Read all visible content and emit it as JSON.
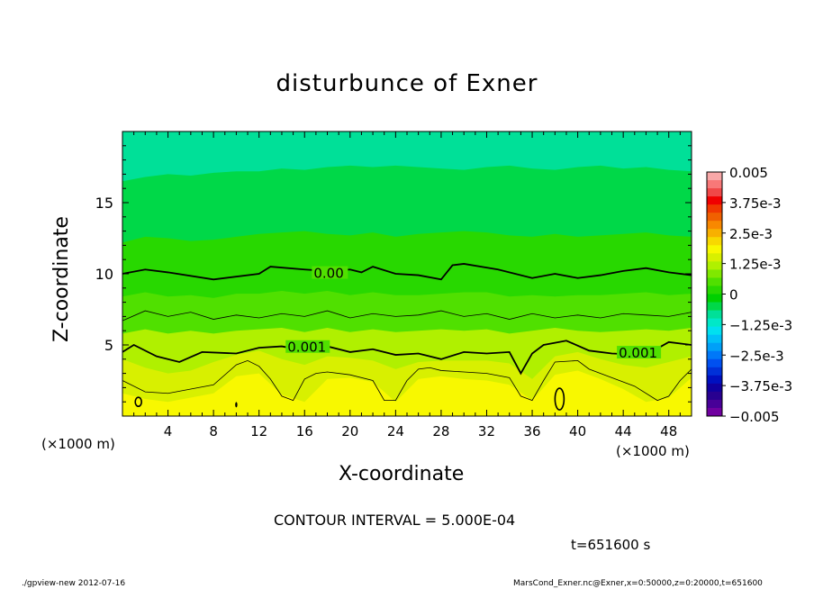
{
  "chart_data": {
    "type": "heatmap",
    "title": "disturbunce of Exner",
    "xlabel": "X-coordinate",
    "ylabel": "Z-coordinate",
    "x_unit_label": "(×1000 m)",
    "xlim": [
      0,
      50
    ],
    "ylim": [
      0,
      20
    ],
    "x_ticks": [
      4,
      8,
      12,
      16,
      20,
      24,
      28,
      32,
      36,
      40,
      44,
      48
    ],
    "y_ticks": [
      5,
      10,
      15
    ],
    "contour_interval": "CONTOUR INTERVAL = 5.000E-04",
    "contour_labels": [
      {
        "text": "0.00",
        "x": 16.8,
        "z": 9.9
      },
      {
        "text": "0.001",
        "x": 14.5,
        "z": 4.7
      },
      {
        "text": "0.001",
        "x": 43.6,
        "z": 4.3
      }
    ],
    "contours": [
      {
        "level": 0.0,
        "bold": true,
        "x": [
          0,
          2,
          4,
          8,
          12,
          13,
          16,
          18,
          20,
          21,
          22,
          24,
          26,
          28,
          29,
          30,
          33,
          36,
          38,
          40,
          42,
          44,
          46,
          48,
          50
        ],
        "z": [
          10,
          10.3,
          10.1,
          9.6,
          10,
          10.5,
          10.3,
          10.2,
          10.3,
          10.1,
          10.5,
          10,
          9.9,
          9.6,
          10.6,
          10.7,
          10.3,
          9.7,
          10,
          9.7,
          9.9,
          10.2,
          10.4,
          10.1,
          9.9
        ]
      },
      {
        "level": 0.0005,
        "bold": false,
        "x": [
          0,
          2,
          4,
          6,
          8,
          10,
          12,
          14,
          16,
          18,
          20,
          22,
          24,
          26,
          28,
          30,
          32,
          34,
          36,
          38,
          40,
          42,
          44,
          46,
          48,
          50
        ],
        "z": [
          6.7,
          7.4,
          7.0,
          7.3,
          6.8,
          7.1,
          6.9,
          7.2,
          7.0,
          7.4,
          6.9,
          7.2,
          7.0,
          7.1,
          7.4,
          7.0,
          7.2,
          6.8,
          7.2,
          6.9,
          7.1,
          6.9,
          7.2,
          7.1,
          7.0,
          7.3
        ]
      },
      {
        "level": 0.001,
        "bold": true,
        "x": [
          0,
          1,
          3,
          5,
          7,
          10,
          12,
          14,
          16,
          18,
          20,
          22,
          24,
          26,
          28,
          30,
          32,
          34,
          35,
          36,
          37,
          39,
          41,
          43,
          46,
          48,
          50
        ],
        "z": [
          4.5,
          5,
          4.2,
          3.8,
          4.5,
          4.4,
          4.8,
          4.9,
          4.6,
          4.9,
          4.5,
          4.7,
          4.3,
          4.4,
          4,
          4.5,
          4.4,
          4.5,
          3,
          4.4,
          5,
          5.3,
          4.6,
          4.4,
          4.3,
          5.2,
          5
        ]
      },
      {
        "level": 0.0015,
        "bold": false,
        "x": [
          0,
          2,
          4,
          6,
          8,
          10,
          11,
          12,
          13,
          14,
          15,
          16,
          17,
          18,
          20,
          22,
          23,
          24,
          25,
          26,
          27,
          28,
          30,
          32,
          34,
          35,
          36,
          37,
          38,
          40,
          41,
          43,
          45,
          47,
          48,
          49,
          50
        ],
        "z": [
          2.5,
          1.7,
          1.6,
          1.9,
          2.2,
          3.6,
          3.9,
          3.5,
          2.6,
          1.4,
          1.1,
          2.6,
          3,
          3.1,
          2.9,
          2.5,
          1.1,
          1.1,
          2.5,
          3.3,
          3.4,
          3.2,
          3.1,
          3,
          2.7,
          1.4,
          1.1,
          2.5,
          3.8,
          3.9,
          3.3,
          2.7,
          2.1,
          1.1,
          1.4,
          2.5,
          3.3
        ]
      }
    ],
    "field_bands_x": [
      0,
      2,
      4,
      6,
      8,
      10,
      12,
      14,
      16,
      18,
      20,
      22,
      24,
      26,
      28,
      30,
      32,
      34,
      36,
      38,
      40,
      42,
      44,
      46,
      48,
      50
    ],
    "field_bands": [
      {
        "level": 0.00175,
        "z": [
          1.6,
          1.2,
          1.0,
          1.3,
          1.6,
          2.8,
          3.0,
          1.5,
          1.0,
          2.6,
          2.7,
          2.4,
          1.0,
          2.6,
          2.8,
          2.6,
          2.5,
          2.2,
          1.1,
          2.9,
          3.2,
          2.6,
          1.9,
          1.0,
          1.3,
          2.7
        ]
      },
      {
        "level": 0.00125,
        "z": [
          4.0,
          3.4,
          3.0,
          3.2,
          3.8,
          4.3,
          4.6,
          4.0,
          3.6,
          4.2,
          4.1,
          3.9,
          3.3,
          3.8,
          3.9,
          3.9,
          3.9,
          3.7,
          2.6,
          4.2,
          4.5,
          4.0,
          3.6,
          3.4,
          3.8,
          4.2
        ]
      },
      {
        "level": 0.00075,
        "z": [
          5.8,
          6.1,
          5.8,
          6.0,
          5.8,
          6.0,
          6.1,
          6.2,
          5.9,
          6.2,
          5.9,
          6.1,
          5.9,
          6.0,
          6.1,
          6.0,
          6.1,
          5.8,
          6.0,
          6.2,
          6.0,
          5.9,
          6.0,
          6.1,
          6.0,
          6.2
        ]
      },
      {
        "level": 0.00025,
        "z": [
          8.4,
          8.7,
          8.4,
          8.5,
          8.3,
          8.6,
          8.6,
          8.8,
          8.6,
          8.8,
          8.5,
          8.7,
          8.5,
          8.5,
          8.6,
          8.7,
          8.7,
          8.4,
          8.5,
          8.4,
          8.5,
          8.5,
          8.6,
          8.7,
          8.5,
          8.6
        ]
      },
      {
        "level": -0.00025,
        "z": [
          12.2,
          12.6,
          12.5,
          12.3,
          12.4,
          12.6,
          12.8,
          12.9,
          13.0,
          12.8,
          12.7,
          12.9,
          12.6,
          12.8,
          12.9,
          13.0,
          12.9,
          12.7,
          12.6,
          12.8,
          12.6,
          12.7,
          12.8,
          12.9,
          12.7,
          12.6
        ]
      },
      {
        "level": -0.00075,
        "z": [
          16.5,
          16.8,
          17.0,
          16.9,
          17.1,
          17.2,
          17.2,
          17.4,
          17.3,
          17.5,
          17.6,
          17.5,
          17.6,
          17.5,
          17.4,
          17.3,
          17.5,
          17.6,
          17.4,
          17.3,
          17.5,
          17.6,
          17.4,
          17.5,
          17.3,
          17.2
        ]
      }
    ],
    "colorbar": {
      "range": [
        -0.005,
        0.005
      ],
      "labels": [
        "0.005",
        "3.75e-3",
        "2.5e-3",
        "1.25e-3",
        "0",
        "−1.25e-3",
        "−2.5e-3",
        "−3.75e-3",
        "−0.005"
      ],
      "label_values": [
        0.005,
        0.00375,
        0.0025,
        0.00125,
        0,
        -0.00125,
        -0.0025,
        -0.00375,
        -0.005
      ],
      "colors": [
        "#f8a8a8",
        "#f87878",
        "#f04848",
        "#f00000",
        "#f03800",
        "#f06000",
        "#f88800",
        "#f8b000",
        "#f8d800",
        "#f8f800",
        "#d8f000",
        "#b0f000",
        "#80e800",
        "#50e000",
        "#28d800",
        "#00d000",
        "#00d848",
        "#00e098",
        "#00e8c8",
        "#00e0f0",
        "#00c0f8",
        "#00a0f8",
        "#0078f8",
        "#0050f0",
        "#0030d8",
        "#0010c0",
        "#1000a0",
        "#280090",
        "#480098",
        "#7000a0"
      ]
    },
    "field_colors": {
      "0.00175": "#f8f800",
      "0.00125": "#d8f000",
      "0.00075": "#b0f000",
      "0.00025": "#50e000",
      "-0.00025": "#28d800",
      "-0.00075": "#00d848",
      "base": "#00e098"
    }
  },
  "labels": {
    "x_unit_left": "(×1000 m)",
    "x_unit_right": "(×1000 m)",
    "time": "t=651600 s",
    "footer_left": "./gpview-new   2012-07-16",
    "footer_right": "MarsCond_Exner.nc@Exner,x=0:50000,z=0:20000,t=651600"
  }
}
